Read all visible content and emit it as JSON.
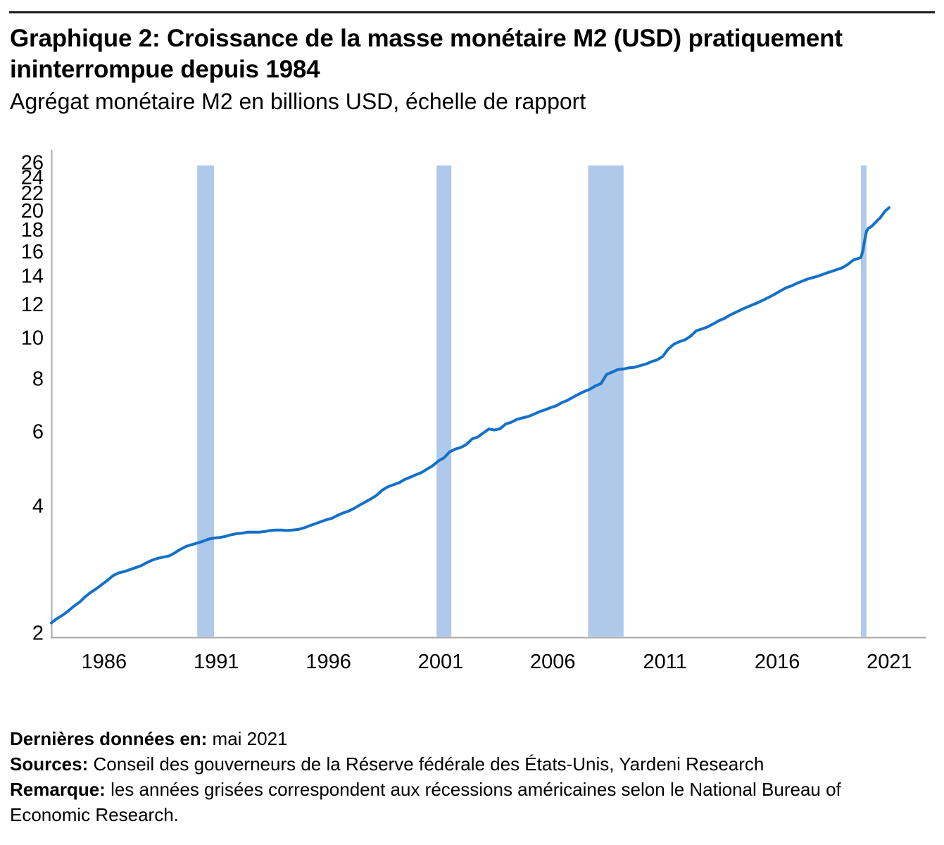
{
  "page": {
    "title": "Graphique 2: Croissance de la masse monétaire M2 (USD) pratiquement ininterrompue depuis 1984",
    "subtitle": "Agrégat monétaire M2 en billions USD, échelle de rapport",
    "footer": {
      "last_data_label": "Dernières données en:",
      "last_data_value": "mai 2021",
      "sources_label": "Sources:",
      "sources_value": "Conseil des gouverneurs de la Réserve fédérale des États-Unis, Yardeni Research",
      "note_label": "Remarque:",
      "note_value": "les années grisées correspondent aux récessions américaines selon le National Bureau of Economic Research."
    }
  },
  "chart_data": {
    "type": "line",
    "title": "Croissance de la masse monétaire M2 (USD) pratiquement ininterrompue depuis 1984",
    "ylabel": "Agrégat monétaire M2 en billions USD",
    "y_scale": "log",
    "y_axis_range": [
      2,
      26
    ],
    "y_ticks": [
      26,
      24,
      22,
      20,
      18,
      16,
      14,
      12,
      10,
      8,
      6,
      4,
      2
    ],
    "x_axis_range": [
      1984,
      2023
    ],
    "x_ticks": [
      1986,
      1991,
      1996,
      2001,
      2006,
      2011,
      2016,
      2021
    ],
    "grid": false,
    "legend": "none",
    "line_color": "#1371c8",
    "recession_color": "#aec9e9",
    "axis_color": "#a8a8a8",
    "recessions": [
      [
        1990.5,
        1991.25
      ],
      [
        2001.17,
        2001.83
      ],
      [
        2007.92,
        2009.5
      ],
      [
        2020.08,
        2020.33
      ]
    ],
    "series": [
      {
        "name": "M2",
        "unit": "billions USD (trillions)",
        "segments": [
          {
            "start": 1984.0,
            "step": 0.25,
            "values": [
              2.11,
              2.16,
              2.2,
              2.25,
              2.31,
              2.36,
              2.43,
              2.49,
              2.54,
              2.6,
              2.66,
              2.73,
              2.77,
              2.79,
              2.82,
              2.85,
              2.88,
              2.93,
              2.97,
              3.0,
              3.02,
              3.04,
              3.09,
              3.15,
              3.2,
              3.23,
              3.26,
              3.29,
              3.33,
              3.35,
              3.36,
              3.38,
              3.41,
              3.43,
              3.44,
              3.46,
              3.46,
              3.46,
              3.47,
              3.49,
              3.5,
              3.5,
              3.49,
              3.5,
              3.51,
              3.54,
              3.58,
              3.62,
              3.66,
              3.7,
              3.73,
              3.79,
              3.84,
              3.88,
              3.94,
              4.01,
              4.08,
              4.15,
              4.23,
              4.35,
              4.43,
              4.48,
              4.53,
              4.61,
              4.67,
              4.73,
              4.79,
              4.88,
              4.97,
              5.1,
              5.19,
              5.36,
              5.44,
              5.49,
              5.58,
              5.75,
              5.81,
              5.94,
              6.07,
              6.04,
              6.08,
              6.24,
              6.3,
              6.4,
              6.45,
              6.5,
              6.58,
              6.67,
              6.74,
              6.82,
              6.89,
              7.01,
              7.1,
              7.22,
              7.34,
              7.45,
              7.54,
              7.68,
              7.78,
              8.18,
              8.28,
              8.4,
              8.42,
              8.48,
              8.5,
              8.58,
              8.65,
              8.77,
              8.85,
              9.02,
              9.4,
              9.64,
              9.78,
              9.88,
              10.08,
              10.38,
              10.48,
              10.6,
              10.77,
              10.96,
              11.1,
              11.3,
              11.47,
              11.64,
              11.8,
              11.95,
              12.1,
              12.28,
              12.47,
              12.67,
              12.9,
              13.12,
              13.26,
              13.45,
              13.62,
              13.78,
              13.89,
              14.02,
              14.18,
              14.33,
              14.47,
              14.63,
              14.9,
              15.26
            ]
          },
          {
            "start": 2020.0,
            "step": 0.0833333,
            "values": [
              15.41,
              15.47,
              16.02,
              17.02,
              17.87,
              18.14,
              18.26,
              18.38,
              18.58,
              18.77,
              18.99,
              19.13,
              19.4,
              19.67,
              19.94,
              20.11,
              20.29
            ]
          }
        ]
      }
    ]
  }
}
